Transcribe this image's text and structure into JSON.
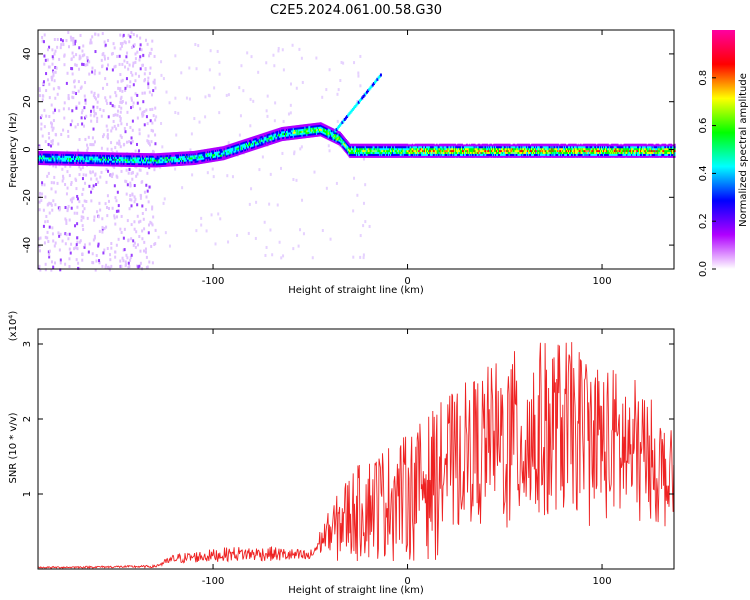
{
  "title": "C2E5.2024.061.00.58.G30",
  "chart_data": [
    {
      "type": "heatmap",
      "xlabel": "Height of straight line (km)",
      "ylabel": "Frequency (Hz)",
      "xlim": [
        -190,
        137
      ],
      "ylim": [
        -50,
        50
      ],
      "xticks": [
        -100,
        0,
        100
      ],
      "yticks": [
        -40,
        -20,
        0,
        20,
        40
      ],
      "colorbar": {
        "label": "Normalized spectral amplitude",
        "range": [
          0,
          1
        ],
        "ticks": [
          0.0,
          0.2,
          0.4,
          0.6,
          0.8
        ],
        "colors": [
          "#ffffff",
          "#b000ff",
          "#0000ff",
          "#00ffff",
          "#00ff00",
          "#ffff00",
          "#ff0000",
          "#ff00a0"
        ]
      },
      "ridge_freq_hz": [
        {
          "height_km": -190,
          "freq_hz": -3
        },
        {
          "height_km": -130,
          "freq_hz": -4
        },
        {
          "height_km": -110,
          "freq_hz": -3
        },
        {
          "height_km": -95,
          "freq_hz": -1
        },
        {
          "height_km": -80,
          "freq_hz": 3
        },
        {
          "height_km": -65,
          "freq_hz": 7
        },
        {
          "height_km": -55,
          "freq_hz": 8
        },
        {
          "height_km": -45,
          "freq_hz": 9
        },
        {
          "height_km": -35,
          "freq_hz": 5
        },
        {
          "height_km": -30,
          "freq_hz": 0
        },
        {
          "height_km": 0,
          "freq_hz": 0
        },
        {
          "height_km": 137,
          "freq_hz": 0
        }
      ]
    },
    {
      "type": "line",
      "xlabel": "Height of straight line (km)",
      "ylabel": "SNR (10 * v/v)",
      "yscale_label": "(x10⁴)",
      "xlim": [
        -190,
        137
      ],
      "ylim": [
        0,
        3.2
      ],
      "xticks": [
        -100,
        0,
        100
      ],
      "yticks": [
        1,
        2,
        3
      ],
      "color": "#ee2222",
      "envelope": [
        {
          "height_km": -190,
          "snr_x1e4": 0.03
        },
        {
          "height_km": -130,
          "snr_x1e4": 0.05
        },
        {
          "height_km": -120,
          "snr_x1e4": 0.2
        },
        {
          "height_km": -90,
          "snr_x1e4": 0.3
        },
        {
          "height_km": -70,
          "snr_x1e4": 0.3
        },
        {
          "height_km": -50,
          "snr_x1e4": 0.25
        },
        {
          "height_km": -40,
          "snr_x1e4": 0.8
        },
        {
          "height_km": -30,
          "snr_x1e4": 1.3
        },
        {
          "height_km": -15,
          "snr_x1e4": 1.6
        },
        {
          "height_km": 0,
          "snr_x1e4": 1.8
        },
        {
          "height_km": 20,
          "snr_x1e4": 2.3
        },
        {
          "height_km": 40,
          "snr_x1e4": 2.7
        },
        {
          "height_km": 60,
          "snr_x1e4": 3.0
        },
        {
          "height_km": 80,
          "snr_x1e4": 3.1
        },
        {
          "height_km": 100,
          "snr_x1e4": 2.8
        },
        {
          "height_km": 120,
          "snr_x1e4": 2.5
        },
        {
          "height_km": 137,
          "snr_x1e4": 1.8
        }
      ]
    }
  ]
}
